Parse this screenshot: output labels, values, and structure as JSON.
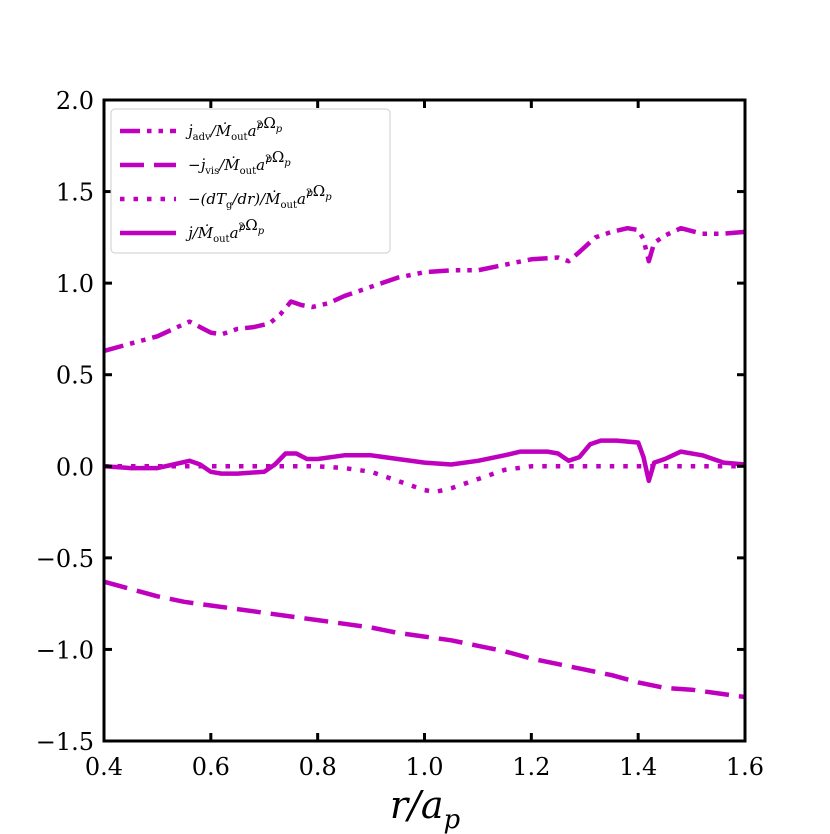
{
  "chart_data": {
    "type": "line",
    "title": "",
    "xlabel_main": "r/a",
    "xlabel_sub": "p",
    "xlim": [
      0.4,
      1.6
    ],
    "ylim": [
      -1.5,
      2.0
    ],
    "xticks": [
      "0.4",
      "0.6",
      "0.8",
      "1.0",
      "1.2",
      "1.4",
      "1.6"
    ],
    "yticks": [
      "−1.5",
      "−1.0",
      "−0.5",
      "0.0",
      "0.5",
      "1.0",
      "1.5",
      "2.0"
    ],
    "grid": false,
    "legend_position": "upper-left",
    "color": "#BF00BF",
    "series": [
      {
        "name": "adv",
        "legend": {
          "pre": "j̇",
          "sub1": "adv",
          "mid": "/Ṁ",
          "sub2": "out",
          "tail": "a",
          "sup": "2",
          "sub3": "p",
          "end": "Ω",
          "sub4": "p"
        },
        "dash": "dashdotdot",
        "x": [
          0.4,
          0.45,
          0.5,
          0.53,
          0.56,
          0.58,
          0.6,
          0.62,
          0.65,
          0.68,
          0.71,
          0.73,
          0.75,
          0.77,
          0.79,
          0.82,
          0.85,
          0.9,
          0.95,
          1.0,
          1.05,
          1.1,
          1.15,
          1.2,
          1.25,
          1.27,
          1.29,
          1.32,
          1.35,
          1.38,
          1.4,
          1.41,
          1.42,
          1.43,
          1.45,
          1.48,
          1.52,
          1.56,
          1.6
        ],
        "y": [
          0.63,
          0.67,
          0.71,
          0.75,
          0.79,
          0.76,
          0.73,
          0.72,
          0.75,
          0.76,
          0.78,
          0.83,
          0.9,
          0.88,
          0.87,
          0.89,
          0.93,
          0.98,
          1.03,
          1.06,
          1.07,
          1.07,
          1.1,
          1.13,
          1.14,
          1.12,
          1.17,
          1.25,
          1.28,
          1.3,
          1.29,
          1.24,
          1.12,
          1.22,
          1.26,
          1.3,
          1.27,
          1.27,
          1.28
        ]
      },
      {
        "name": "vis",
        "legend": {
          "pre": "−j̇",
          "sub1": "vis",
          "mid": "/Ṁ",
          "sub2": "out",
          "tail": "a",
          "sup": "2",
          "sub3": "p",
          "end": "Ω",
          "sub4": "p"
        },
        "dash": "dashed",
        "x": [
          0.4,
          0.45,
          0.5,
          0.55,
          0.6,
          0.65,
          0.7,
          0.75,
          0.8,
          0.85,
          0.9,
          0.95,
          1.0,
          1.05,
          1.1,
          1.15,
          1.2,
          1.25,
          1.3,
          1.35,
          1.4,
          1.45,
          1.5,
          1.55,
          1.6
        ],
        "y": [
          -0.63,
          -0.67,
          -0.71,
          -0.74,
          -0.76,
          -0.78,
          -0.8,
          -0.82,
          -0.84,
          -0.86,
          -0.88,
          -0.91,
          -0.93,
          -0.95,
          -0.98,
          -1.01,
          -1.05,
          -1.08,
          -1.11,
          -1.14,
          -1.18,
          -1.21,
          -1.22,
          -1.24,
          -1.26
        ]
      },
      {
        "name": "torque",
        "legend": {
          "pre": "−(dT",
          "sub1": "g",
          "mid": "/dr)/Ṁ",
          "sub2": "out",
          "tail": "a",
          "sup": "2",
          "sub3": "p",
          "end": "Ω",
          "sub4": "p"
        },
        "dash": "dotted",
        "x": [
          0.4,
          0.5,
          0.6,
          0.7,
          0.8,
          0.85,
          0.9,
          0.95,
          1.0,
          1.02,
          1.05,
          1.1,
          1.15,
          1.2,
          1.3,
          1.4,
          1.5,
          1.6
        ],
        "y": [
          0.0,
          0.0,
          0.0,
          0.0,
          0.0,
          -0.01,
          -0.03,
          -0.08,
          -0.13,
          -0.14,
          -0.12,
          -0.07,
          -0.02,
          0.0,
          0.0,
          0.0,
          0.0,
          0.0
        ]
      },
      {
        "name": "total",
        "legend": {
          "pre": "j̇",
          "sub1": "",
          "mid": "/Ṁ",
          "sub2": "out",
          "tail": "a",
          "sup": "2",
          "sub3": "p",
          "end": "Ω",
          "sub4": "p"
        },
        "dash": "solid",
        "x": [
          0.4,
          0.45,
          0.5,
          0.53,
          0.56,
          0.58,
          0.6,
          0.62,
          0.65,
          0.7,
          0.72,
          0.74,
          0.76,
          0.78,
          0.8,
          0.85,
          0.9,
          0.95,
          1.0,
          1.05,
          1.1,
          1.15,
          1.18,
          1.2,
          1.23,
          1.25,
          1.27,
          1.29,
          1.31,
          1.33,
          1.36,
          1.4,
          1.41,
          1.42,
          1.43,
          1.45,
          1.48,
          1.52,
          1.56,
          1.6
        ],
        "y": [
          0.0,
          -0.01,
          -0.01,
          0.01,
          0.03,
          0.01,
          -0.03,
          -0.04,
          -0.04,
          -0.03,
          0.01,
          0.07,
          0.07,
          0.04,
          0.04,
          0.06,
          0.06,
          0.04,
          0.02,
          0.01,
          0.03,
          0.06,
          0.08,
          0.08,
          0.08,
          0.07,
          0.03,
          0.05,
          0.12,
          0.14,
          0.14,
          0.13,
          0.05,
          -0.08,
          0.02,
          0.04,
          0.08,
          0.06,
          0.02,
          0.01
        ]
      }
    ]
  }
}
